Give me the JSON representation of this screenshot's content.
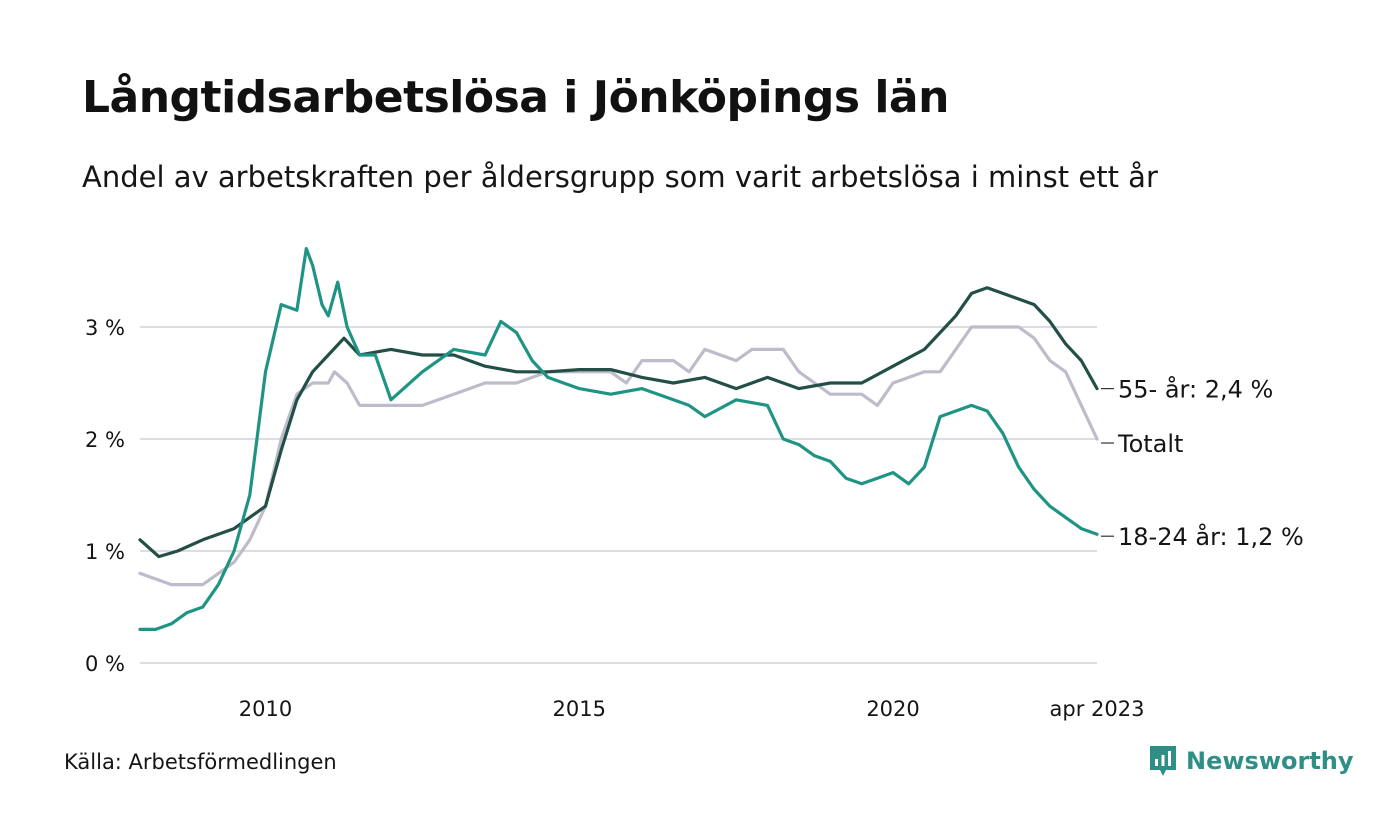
{
  "title": "Långtidsarbetslösa i Jönköpings län",
  "subtitle": "Andel av arbetskraften per åldersgrupp som varit arbetslösa i minst ett år",
  "source": "Källa: Arbetsförmedlingen",
  "brand": "Newsworthy",
  "colors": {
    "age55": "#234f47",
    "total": "#bdbccb",
    "age18_24": "#1f9484",
    "grid": "#dcdce2"
  },
  "chart_data": {
    "type": "line",
    "xlim": [
      2008.0,
      2023.25
    ],
    "ylim": [
      0,
      4
    ],
    "y_ticks": [
      {
        "value": 0,
        "label": "0 %"
      },
      {
        "value": 1,
        "label": "1 %"
      },
      {
        "value": 2,
        "label": "2 %"
      },
      {
        "value": 3,
        "label": "3 %"
      }
    ],
    "x_ticks": [
      {
        "value": 2010,
        "label": "2010"
      },
      {
        "value": 2015,
        "label": "2015"
      },
      {
        "value": 2020,
        "label": "2020"
      },
      {
        "value": 2023.25,
        "label": "apr 2023"
      }
    ],
    "grid": true,
    "series": [
      {
        "key": "total",
        "name": "Totalt",
        "end_label": "Totalt",
        "color": "#bdbccb",
        "x": [
          2008.0,
          2008.5,
          2008.75,
          2009.0,
          2009.25,
          2009.5,
          2009.75,
          2010.0,
          2010.25,
          2010.5,
          2010.75,
          2011.0,
          2011.1,
          2011.3,
          2011.5,
          2012.0,
          2012.5,
          2013.0,
          2013.5,
          2014.0,
          2014.5,
          2015.0,
          2015.5,
          2015.75,
          2016.0,
          2016.5,
          2016.75,
          2017.0,
          2017.5,
          2017.75,
          2018.0,
          2018.25,
          2018.5,
          2018.75,
          2019.0,
          2019.5,
          2019.75,
          2020.0,
          2020.5,
          2020.75,
          2021.0,
          2021.25,
          2021.5,
          2021.75,
          2022.0,
          2022.25,
          2022.5,
          2022.75,
          2023.0,
          2023.25
        ],
        "y": [
          0.8,
          0.7,
          0.7,
          0.7,
          0.8,
          0.9,
          1.1,
          1.4,
          2.0,
          2.4,
          2.5,
          2.5,
          2.6,
          2.5,
          2.3,
          2.3,
          2.3,
          2.4,
          2.5,
          2.5,
          2.6,
          2.6,
          2.6,
          2.5,
          2.7,
          2.7,
          2.6,
          2.8,
          2.7,
          2.8,
          2.8,
          2.8,
          2.6,
          2.5,
          2.4,
          2.4,
          2.3,
          2.5,
          2.6,
          2.6,
          2.8,
          3.0,
          3.0,
          3.0,
          3.0,
          2.9,
          2.7,
          2.6,
          2.3,
          2.0
        ]
      },
      {
        "key": "age55",
        "name": "55- år",
        "end_label": "55- år: 2,4 %",
        "color": "#234f47",
        "x": [
          2008.0,
          2008.3,
          2008.6,
          2009.0,
          2009.5,
          2010.0,
          2010.25,
          2010.5,
          2010.75,
          2011.0,
          2011.25,
          2011.5,
          2012.0,
          2012.5,
          2013.0,
          2013.5,
          2014.0,
          2014.5,
          2015.0,
          2015.5,
          2016.0,
          2016.5,
          2017.0,
          2017.5,
          2018.0,
          2018.25,
          2018.5,
          2019.0,
          2019.5,
          2020.0,
          2020.5,
          2020.75,
          2021.0,
          2021.25,
          2021.5,
          2021.75,
          2022.0,
          2022.25,
          2022.5,
          2022.75,
          2023.0,
          2023.25
        ],
        "y": [
          1.1,
          0.95,
          1.0,
          1.1,
          1.2,
          1.4,
          1.9,
          2.35,
          2.6,
          2.75,
          2.9,
          2.75,
          2.8,
          2.75,
          2.75,
          2.65,
          2.6,
          2.6,
          2.62,
          2.62,
          2.55,
          2.5,
          2.55,
          2.45,
          2.55,
          2.5,
          2.45,
          2.5,
          2.5,
          2.65,
          2.8,
          2.95,
          3.1,
          3.3,
          3.35,
          3.3,
          3.25,
          3.2,
          3.05,
          2.85,
          2.7,
          2.45
        ]
      },
      {
        "key": "age18_24",
        "name": "18-24 år",
        "end_label": "18-24 år: 1,2 %",
        "color": "#1f9484",
        "x": [
          2008.0,
          2008.25,
          2008.5,
          2008.75,
          2009.0,
          2009.25,
          2009.5,
          2009.75,
          2010.0,
          2010.25,
          2010.5,
          2010.65,
          2010.75,
          2010.9,
          2011.0,
          2011.15,
          2011.3,
          2011.5,
          2011.75,
          2012.0,
          2012.5,
          2013.0,
          2013.5,
          2013.75,
          2014.0,
          2014.25,
          2014.5,
          2015.0,
          2015.5,
          2016.0,
          2016.5,
          2016.75,
          2017.0,
          2017.5,
          2018.0,
          2018.25,
          2018.5,
          2018.75,
          2019.0,
          2019.25,
          2019.5,
          2019.75,
          2020.0,
          2020.25,
          2020.5,
          2020.75,
          2021.0,
          2021.25,
          2021.5,
          2021.75,
          2022.0,
          2022.25,
          2022.5,
          2022.75,
          2023.0,
          2023.25
        ],
        "y": [
          0.3,
          0.3,
          0.35,
          0.45,
          0.5,
          0.7,
          1.0,
          1.5,
          2.6,
          3.2,
          3.15,
          3.7,
          3.55,
          3.2,
          3.1,
          3.4,
          3.0,
          2.75,
          2.75,
          2.35,
          2.6,
          2.8,
          2.75,
          3.05,
          2.95,
          2.7,
          2.55,
          2.45,
          2.4,
          2.45,
          2.35,
          2.3,
          2.2,
          2.35,
          2.3,
          2.0,
          1.95,
          1.85,
          1.8,
          1.65,
          1.6,
          1.65,
          1.7,
          1.6,
          1.75,
          2.2,
          2.25,
          2.3,
          2.25,
          2.05,
          1.75,
          1.55,
          1.4,
          1.3,
          1.2,
          1.15
        ]
      }
    ]
  }
}
